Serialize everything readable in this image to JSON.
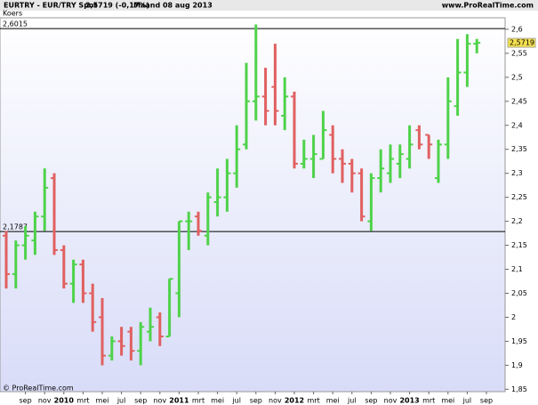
{
  "header": {
    "symbol": "EURTRY - EUR/TRY Spot",
    "quote": "2,5719 (-0,17%)",
    "period": "Maand  08 aug 2013",
    "site": "www.ProRealTime.com"
  },
  "chart_data": {
    "type": "ohlc",
    "label": "Koers",
    "footer": "© ProRealTime.com",
    "up_color": "#4fd24a",
    "down_color": "#e06060",
    "categories": [
      null,
      null,
      "sep",
      null,
      "nov",
      null,
      "2010",
      null,
      "mrt",
      null,
      "mei",
      null,
      "jul",
      null,
      "sep",
      null,
      "nov",
      null,
      "2011",
      null,
      "mrt",
      null,
      "mei",
      null,
      "jul",
      null,
      "sep",
      null,
      "nov",
      null,
      "2012",
      null,
      "mrt",
      null,
      "mei",
      null,
      "jul",
      null,
      "sep",
      null,
      "nov",
      null,
      "2013",
      null,
      "mrt",
      null,
      "mei",
      null,
      "jul",
      null,
      "sep"
    ],
    "open": [
      2.17,
      2.09,
      2.15,
      2.16,
      2.21,
      2.29,
      2.14,
      2.07,
      2.11,
      2.05,
      2.0,
      1.92,
      1.95,
      1.97,
      1.93,
      1.97,
      2.0,
      1.96,
      2.05,
      2.2,
      2.21,
      2.17,
      2.24,
      2.25,
      2.3,
      2.36,
      2.45,
      2.46,
      2.48,
      2.42,
      2.46,
      2.32,
      2.33,
      2.33,
      2.38,
      2.33,
      2.32,
      2.3,
      2.2,
      2.29,
      2.3,
      2.32,
      2.33,
      2.39,
      2.38,
      2.29,
      2.36,
      2.44,
      2.51,
      2.57,
      null
    ],
    "high": [
      2.18,
      2.16,
      2.19,
      2.22,
      2.31,
      2.3,
      2.15,
      2.12,
      2.12,
      2.07,
      2.04,
      1.96,
      1.98,
      1.98,
      1.99,
      2.02,
      2.01,
      2.08,
      2.2,
      2.22,
      2.22,
      2.26,
      2.31,
      2.33,
      2.4,
      2.53,
      2.61,
      2.52,
      2.57,
      2.5,
      2.47,
      2.37,
      2.38,
      2.43,
      2.4,
      2.35,
      2.33,
      2.31,
      2.3,
      2.35,
      2.36,
      2.36,
      2.4,
      2.4,
      2.38,
      2.37,
      2.5,
      2.58,
      2.59,
      2.58,
      null
    ],
    "low": [
      2.06,
      2.06,
      2.12,
      2.13,
      2.18,
      2.13,
      2.06,
      2.03,
      2.03,
      1.97,
      1.9,
      1.91,
      1.92,
      1.91,
      1.9,
      1.95,
      1.94,
      1.96,
      2.0,
      2.14,
      2.17,
      2.15,
      2.21,
      2.22,
      2.27,
      2.35,
      2.41,
      2.4,
      2.4,
      2.39,
      2.31,
      2.31,
      2.29,
      2.33,
      2.3,
      2.28,
      2.26,
      2.2,
      2.18,
      2.26,
      2.28,
      2.29,
      2.31,
      2.35,
      2.33,
      2.28,
      2.33,
      2.42,
      2.48,
      2.55,
      null
    ],
    "close": [
      2.09,
      2.15,
      2.17,
      2.21,
      2.27,
      2.14,
      2.07,
      2.11,
      2.05,
      1.99,
      1.92,
      1.95,
      1.94,
      1.93,
      1.98,
      1.98,
      1.96,
      2.08,
      2.2,
      2.2,
      2.18,
      2.25,
      2.25,
      2.3,
      2.35,
      2.45,
      2.46,
      2.43,
      2.43,
      2.46,
      2.32,
      2.33,
      2.34,
      2.39,
      2.33,
      2.32,
      2.3,
      2.21,
      2.29,
      2.31,
      2.33,
      2.34,
      2.36,
      2.36,
      2.36,
      2.36,
      2.45,
      2.51,
      2.57,
      2.5719,
      null
    ],
    "ylim": [
      1.845,
      2.624
    ],
    "yticks": [
      {
        "value": 1.85,
        "label": "1,85"
      },
      {
        "value": 1.9,
        "label": "1,9"
      },
      {
        "value": 1.95,
        "label": "1,95"
      },
      2,
      {
        "value": 2.05,
        "label": "2,05"
      },
      {
        "value": 2.1,
        "label": "2,1"
      },
      {
        "value": 2.15,
        "label": "2,15"
      },
      {
        "value": 2.2,
        "label": "2,2"
      },
      {
        "value": 2.25,
        "label": "2,25"
      },
      {
        "value": 2.3,
        "label": "2,3"
      },
      {
        "value": 2.35,
        "label": "2,35"
      },
      {
        "value": 2.4,
        "label": "2,4"
      },
      {
        "value": 2.45,
        "label": "2,45"
      },
      {
        "value": 2.5,
        "label": "2,5"
      },
      {
        "value": 2.55,
        "label": "2,55"
      },
      {
        "value": 2.6,
        "label": "2,6"
      }
    ],
    "hlines": [
      {
        "value": 2.6015,
        "label": "2,6015"
      },
      {
        "value": 2.1787,
        "label": "2,1787"
      }
    ],
    "last_price": {
      "value": 2.5719,
      "label": "2,5719"
    }
  }
}
